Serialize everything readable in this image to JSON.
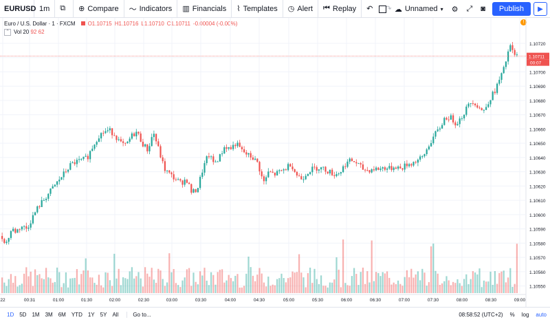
{
  "toolbar": {
    "symbol": "EURUSD",
    "interval": "1m",
    "compare": "Compare",
    "indicators": "Indicators",
    "financials": "Financials",
    "templates": "Templates",
    "alert": "Alert",
    "replay": "Replay",
    "layout_name": "Unnamed",
    "publish": "Publish"
  },
  "legend": {
    "title": "Euro / U.S. Dollar · 1 · FXCM",
    "open": "O1.10715",
    "high": "H1.10716",
    "low": "L1.10710",
    "close": "C1.10711",
    "change": "-0.00004 (-0.00%)",
    "vol_label": "Vol 20",
    "vol_value1": "92",
    "vol_value2": "62"
  },
  "alert_badge": "!",
  "chart_data": {
    "type": "candlestick",
    "y_ticks": [
      "1.10720",
      "1.10710",
      "1.10700",
      "1.10690",
      "1.10680",
      "1.10670",
      "1.10660",
      "1.10650",
      "1.10640",
      "1.10630",
      "1.10620",
      "1.10610",
      "1.10600",
      "1.10590",
      "1.10580",
      "1.10570",
      "1.10560",
      "1.10550"
    ],
    "x_ticks": [
      "22",
      "00:31",
      "01:00",
      "01:30",
      "02:00",
      "02:30",
      "03:00",
      "03:30",
      "04:00",
      "04:30",
      "05:00",
      "05:30",
      "06:00",
      "06:30",
      "07:00",
      "07:30",
      "08:00",
      "08:30",
      "09:00"
    ],
    "ylim": [
      1.10545,
      1.10733
    ],
    "current_price": "1.10711",
    "countdown": "00:07",
    "up_color": "#26a69a",
    "down_color": "#ef5350",
    "close_path": [
      [
        0,
        1.10585
      ],
      [
        8,
        1.1058
      ],
      [
        16,
        1.1059
      ],
      [
        22,
        1.10588
      ],
      [
        30,
        1.10592
      ],
      [
        38,
        1.1059
      ],
      [
        46,
        1.10598
      ],
      [
        54,
        1.10605
      ],
      [
        62,
        1.1061
      ],
      [
        70,
        1.10615
      ],
      [
        78,
        1.1062
      ],
      [
        86,
        1.10625
      ],
      [
        94,
        1.1063
      ],
      [
        102,
        1.10635
      ],
      [
        110,
        1.10637
      ],
      [
        118,
        1.10638
      ],
      [
        126,
        1.1064
      ],
      [
        134,
        1.10648
      ],
      [
        142,
        1.10655
      ],
      [
        150,
        1.10658
      ],
      [
        158,
        1.10659
      ],
      [
        166,
        1.10656
      ],
      [
        174,
        1.1065
      ],
      [
        182,
        1.10648
      ],
      [
        190,
        1.10655
      ],
      [
        198,
        1.10658
      ],
      [
        206,
        1.1065
      ],
      [
        214,
        1.10645
      ],
      [
        222,
        1.10658
      ],
      [
        230,
        1.10645
      ],
      [
        238,
        1.10632
      ],
      [
        246,
        1.10628
      ],
      [
        254,
        1.10625
      ],
      [
        262,
        1.10622
      ],
      [
        270,
        1.10625
      ],
      [
        278,
        1.10615
      ],
      [
        286,
        1.10618
      ],
      [
        294,
        1.10632
      ],
      [
        302,
        1.10642
      ],
      [
        310,
        1.10636
      ],
      [
        318,
        1.1064
      ],
      [
        326,
        1.10648
      ],
      [
        334,
        1.10646
      ],
      [
        342,
        1.1065
      ],
      [
        350,
        1.10645
      ],
      [
        358,
        1.10642
      ],
      [
        366,
        1.1064
      ],
      [
        374,
        1.10636
      ],
      [
        382,
        1.10622
      ],
      [
        390,
        1.1063
      ],
      [
        398,
        1.10628
      ],
      [
        406,
        1.1063
      ],
      [
        414,
        1.10632
      ],
      [
        422,
        1.10636
      ],
      [
        430,
        1.10628
      ],
      [
        438,
        1.10625
      ],
      [
        446,
        1.1063
      ],
      [
        454,
        1.10632
      ],
      [
        462,
        1.10633
      ],
      [
        470,
        1.10632
      ],
      [
        478,
        1.1063
      ],
      [
        486,
        1.10628
      ],
      [
        494,
        1.1063
      ],
      [
        502,
        1.10636
      ],
      [
        510,
        1.10638
      ],
      [
        518,
        1.10636
      ],
      [
        526,
        1.10632
      ],
      [
        534,
        1.10631
      ],
      [
        542,
        1.10632
      ],
      [
        550,
        1.10632
      ],
      [
        558,
        1.10633
      ],
      [
        566,
        1.10632
      ],
      [
        574,
        1.10634
      ],
      [
        582,
        1.10632
      ],
      [
        590,
        1.10635
      ],
      [
        598,
        1.10636
      ],
      [
        606,
        1.10638
      ],
      [
        614,
        1.1064
      ],
      [
        622,
        1.10648
      ],
      [
        630,
        1.10655
      ],
      [
        638,
        1.1066
      ],
      [
        646,
        1.10668
      ],
      [
        654,
        1.10668
      ],
      [
        662,
        1.10664
      ],
      [
        670,
        1.10668
      ],
      [
        678,
        1.10675
      ],
      [
        686,
        1.1068
      ],
      [
        694,
        1.10676
      ],
      [
        702,
        1.10672
      ],
      [
        710,
        1.1068
      ],
      [
        718,
        1.10686
      ],
      [
        726,
        1.10695
      ],
      [
        732,
        1.10702
      ],
      [
        738,
        1.10714
      ],
      [
        742,
        1.10718
      ],
      [
        746,
        1.10712
      ],
      [
        752,
        1.10711
      ]
    ]
  },
  "bottom": {
    "ranges": [
      "1D",
      "5D",
      "1M",
      "3M",
      "6M",
      "YTD",
      "1Y",
      "5Y",
      "All"
    ],
    "goto": "Go to...",
    "time": "08:58:52 (UTC+2)",
    "percent": "%",
    "log": "log",
    "auto": "auto"
  }
}
